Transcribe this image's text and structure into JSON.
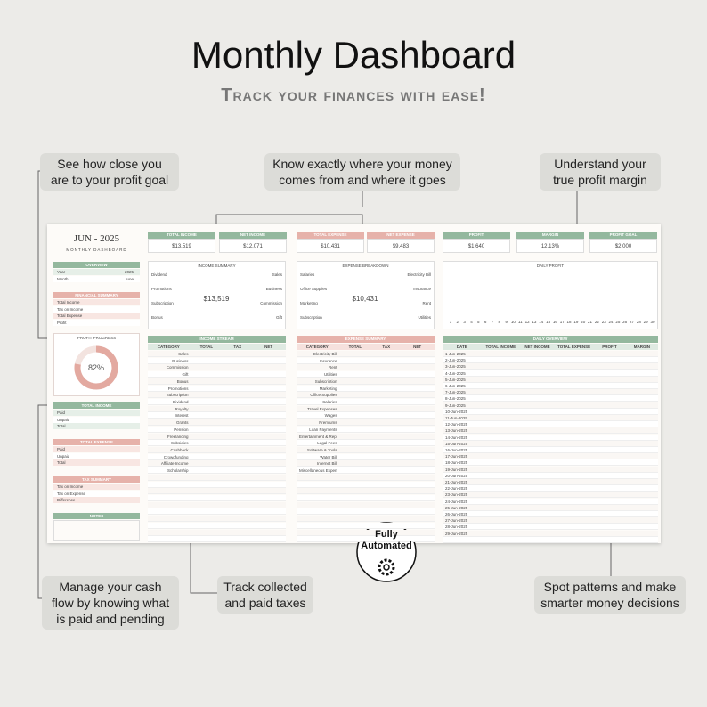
{
  "header": {
    "title": "Monthly Dashboard",
    "subtitle": "Track your finances with ease!"
  },
  "callouts": [
    {
      "lines": [
        "See how close you",
        "are to your profit goal"
      ]
    },
    {
      "lines": [
        "Know exactly where your money",
        "comes from and where it goes"
      ]
    },
    {
      "lines": [
        "Understand your",
        "true profit margin"
      ]
    },
    {
      "lines": [
        "Manage your cash",
        "flow by knowing what",
        "is paid and pending"
      ]
    },
    {
      "lines": [
        "Track collected",
        "and paid taxes"
      ]
    },
    {
      "lines": [
        "Spot patterns and make",
        "smarter money decisions"
      ]
    }
  ],
  "badge": {
    "lines": [
      "Fully",
      "Automated"
    ]
  },
  "dashboard": {
    "title": "JUN - 2025",
    "subtitle": "MONTHLY DASHBOARD",
    "kpis": [
      {
        "label": "TOTAL INCOME",
        "value": "$13,519"
      },
      {
        "label": "NET INCOME",
        "value": "$12,071"
      },
      {
        "label": "TOTAL EXPENSE",
        "value": "$10,431"
      },
      {
        "label": "NET EXPENSE",
        "value": "$9,483"
      },
      {
        "label": "PROFIT",
        "value": "$1,640"
      },
      {
        "label": "MARGIN",
        "value": "12.13%"
      },
      {
        "label": "PROFIT GOAL",
        "value": "$2,000"
      }
    ],
    "overview": {
      "title": "OVERVIEW",
      "rows": [
        [
          "Year",
          "2025"
        ],
        [
          "Month",
          "June"
        ]
      ]
    },
    "financial_summary": {
      "title": "FINANCIAL SUMMARY",
      "rows": [
        "Total Income",
        "Tax on Income",
        "Total Expense",
        "Profit"
      ]
    },
    "profit_progress": {
      "title": "PROFIT PROGRESS",
      "value": "82%"
    },
    "total_income": {
      "title": "TOTAL INCOME",
      "rows": [
        "Paid",
        "Unpaid",
        "Total"
      ]
    },
    "total_expense": {
      "title": "TOTAL EXPENSE",
      "rows": [
        "Paid",
        "Unpaid",
        "Total"
      ]
    },
    "tax_summary": {
      "title": "TAX SUMMARY",
      "rows": [
        "Tax on Income",
        "Tax on Expense",
        "Difference"
      ]
    },
    "notes": {
      "title": "NOTES"
    },
    "income_summary": {
      "title": "INCOME SUMMARY",
      "center": "$13,519",
      "left": [
        "Dividend",
        "Promotions",
        "Subscription",
        "Bonus"
      ],
      "right": [
        "Sales",
        "Business",
        "Commission",
        "Gift"
      ]
    },
    "expense_breakdown": {
      "title": "EXPENSE BREAKDOWN",
      "center": "$10,431",
      "left": [
        "Salaries",
        "Office Supplies",
        "Marketing",
        "Subscription"
      ],
      "right": [
        "Electricity Bill",
        "Insurance",
        "Rent",
        "Utilities"
      ]
    },
    "daily_profit": {
      "title": "DAILY PROFIT",
      "x": [
        1,
        2,
        3,
        4,
        5,
        6,
        7,
        8,
        9,
        10,
        11,
        12,
        13,
        14,
        15,
        16,
        17,
        18,
        19,
        20,
        21,
        22,
        23,
        24,
        25,
        26,
        27,
        28,
        29,
        30
      ]
    },
    "income_stream": {
      "title": "INCOME STREAM",
      "columns": [
        "CATEGORY",
        "TOTAL",
        "TAX",
        "NET"
      ],
      "categories": [
        "Sales",
        "Business",
        "Commission",
        "Gift",
        "Bonus",
        "Promotions",
        "Subscription",
        "Dividend",
        "Royalty",
        "Interest",
        "Grants",
        "Pension",
        "Freelancing",
        "Subsidies",
        "Cashback",
        "Crowdfunding",
        "Affiliate Income",
        "Scholarship"
      ]
    },
    "expense_summary": {
      "title": "EXPENSE SUMMARY",
      "columns": [
        "CATEGORY",
        "TOTAL",
        "TAX",
        "NET"
      ],
      "categories": [
        "Electricity Bill",
        "Insurance",
        "Rent",
        "Utilities",
        "Subscription",
        "Marketing",
        "Office Supplies",
        "Salaries",
        "Travel Expenses",
        "Wages",
        "Premiums",
        "Loan Payments",
        "Entertainment & Repairs",
        "Legal Fees",
        "Software & Tools",
        "Water Bill",
        "Internet Bill",
        "Miscellaneous Expenses"
      ]
    },
    "daily_overview": {
      "title": "DAILY OVERVIEW",
      "columns": [
        "DATE",
        "TOTAL INCOME",
        "NET INCOME",
        "TOTAL EXPENSE",
        "PROFIT",
        "MARGIN"
      ],
      "dates": [
        "1-Jun-2025",
        "2-Jun-2025",
        "3-Jun-2025",
        "4-Jun-2025",
        "5-Jun-2025",
        "6-Jun-2025",
        "7-Jun-2025",
        "8-Jun-2025",
        "9-Jun-2025",
        "10-Jun-2025",
        "11-Jun-2025",
        "12-Jun-2025",
        "13-Jun-2025",
        "14-Jun-2025",
        "15-Jun-2025",
        "16-Jun-2025",
        "17-Jun-2025",
        "18-Jun-2025",
        "19-Jun-2025",
        "20-Jun-2025",
        "21-Jun-2025",
        "22-Jun-2025",
        "23-Jun-2025",
        "24-Jun-2025",
        "25-Jun-2025",
        "26-Jun-2025",
        "27-Jun-2025",
        "28-Jun-2025",
        "29-Jun-2025"
      ]
    }
  }
}
